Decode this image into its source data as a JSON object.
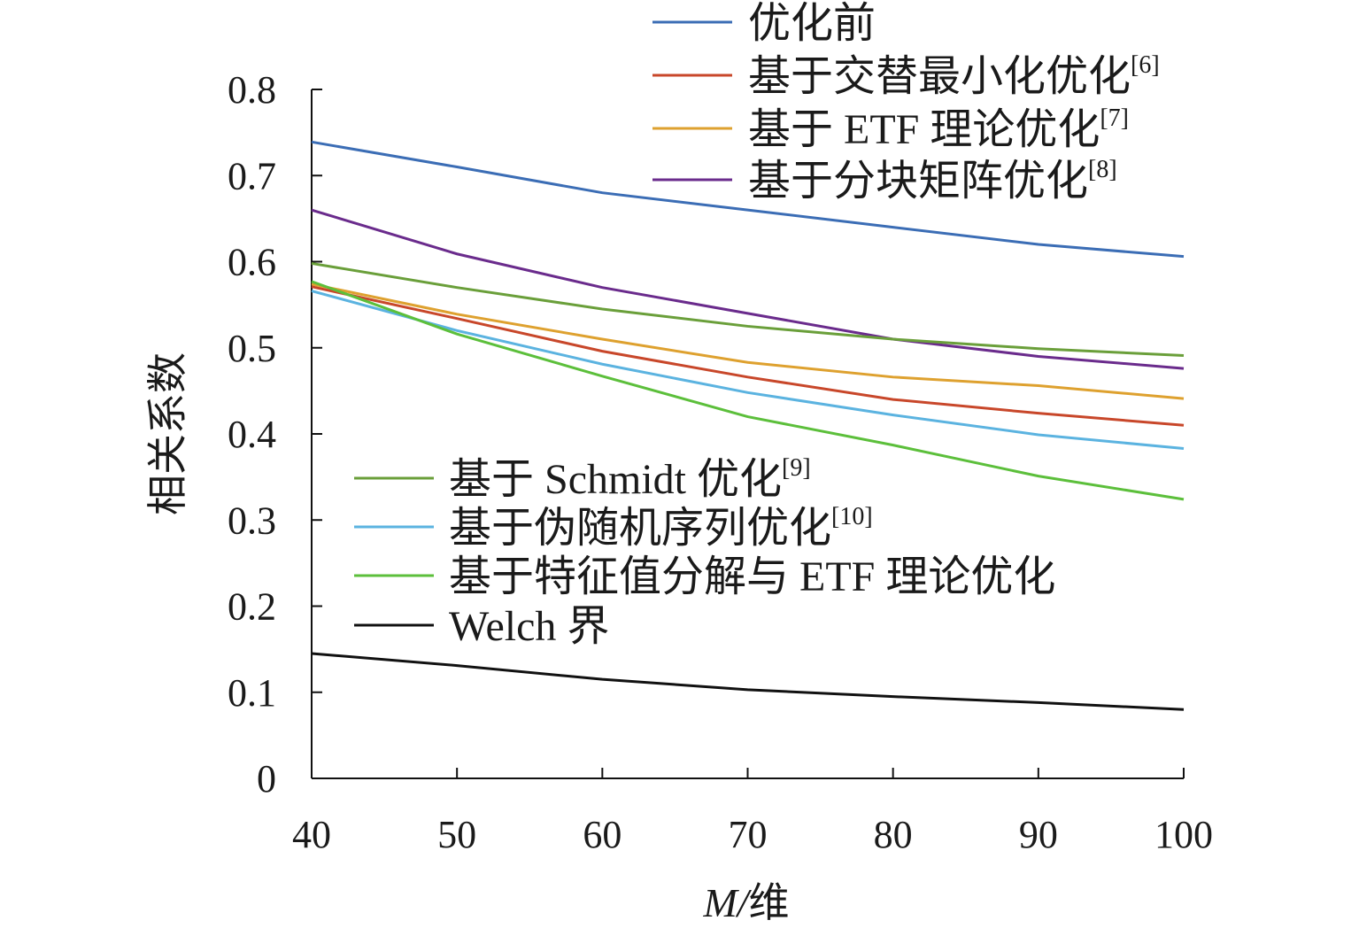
{
  "chart_data": {
    "type": "line",
    "title": "",
    "xlabel": "M/维",
    "xlabel_italic_part": "M",
    "xlabel_rest": "/维",
    "ylabel": "相关系数",
    "x": [
      40,
      50,
      60,
      70,
      80,
      90,
      100
    ],
    "xlim": [
      40,
      100
    ],
    "ylim": [
      0,
      0.8
    ],
    "xticks": [
      "40",
      "50",
      "60",
      "70",
      "80",
      "90",
      "100"
    ],
    "yticks": [
      "0",
      "0.1",
      "0.2",
      "0.3",
      "0.4",
      "0.5",
      "0.6",
      "0.7",
      "0.8"
    ],
    "grid": false,
    "series": [
      {
        "name": "优化前",
        "sup": "",
        "color": "#3b6db5",
        "legend": "top",
        "values": [
          0.739,
          0.71,
          0.68,
          0.66,
          0.64,
          0.62,
          0.606
        ]
      },
      {
        "name": "基于交替最小化优化",
        "sup": "[6]",
        "color": "#c8472a",
        "legend": "top",
        "values": [
          0.571,
          0.534,
          0.496,
          0.466,
          0.44,
          0.424,
          0.41
        ]
      },
      {
        "name": "基于 ETF 理论优化",
        "sup": "[7]",
        "color": "#dea12f",
        "legend": "top",
        "values": [
          0.574,
          0.539,
          0.51,
          0.483,
          0.466,
          0.456,
          0.441
        ]
      },
      {
        "name": "基于分块矩阵优化",
        "sup": "[8]",
        "color": "#6a2b8c",
        "legend": "top",
        "values": [
          0.66,
          0.609,
          0.57,
          0.54,
          0.51,
          0.49,
          0.476
        ]
      },
      {
        "name": "基于 Schmidt 优化",
        "sup": "[9]",
        "color": "#6a9f3a",
        "legend": "bottom",
        "values": [
          0.598,
          0.57,
          0.545,
          0.525,
          0.51,
          0.499,
          0.491
        ]
      },
      {
        "name": "基于伪随机序列优化",
        "sup": "[10]",
        "color": "#5bb3e0",
        "legend": "bottom",
        "values": [
          0.566,
          0.52,
          0.481,
          0.448,
          0.422,
          0.399,
          0.383
        ]
      },
      {
        "name": "基于特征值分解与 ETF 理论优化",
        "sup": "",
        "color": "#5cbf3b",
        "legend": "bottom",
        "values": [
          0.577,
          0.516,
          0.467,
          0.42,
          0.387,
          0.351,
          0.324
        ]
      },
      {
        "name": "Welch 界",
        "sup": "",
        "color": "#111111",
        "legend": "bottom",
        "values": [
          0.145,
          0.131,
          0.115,
          0.103,
          0.095,
          0.088,
          0.08
        ]
      }
    ]
  }
}
